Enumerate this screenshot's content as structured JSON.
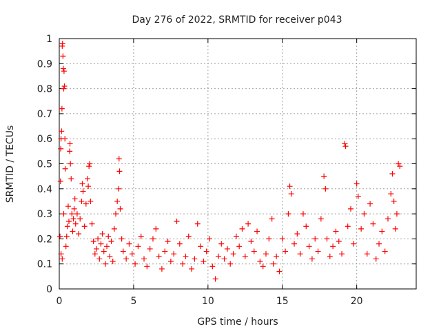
{
  "chart_data": {
    "type": "scatter",
    "title": "Day 276 of 2022, SRMTID for receiver p043",
    "xlabel": "GPS time / hours",
    "ylabel": "SRMTID / TECUs",
    "xlim": [
      0,
      24
    ],
    "ylim": [
      0,
      1
    ],
    "xticks": [
      0,
      5,
      10,
      15,
      20
    ],
    "xtick_labels": [
      "0",
      "5",
      "10",
      "15",
      "20"
    ],
    "yticks": [
      0,
      0.1,
      0.2,
      0.3,
      0.4,
      0.5,
      0.6,
      0.7,
      0.8,
      0.9,
      1
    ],
    "ytick_labels": [
      "0",
      "0.1",
      "0.2",
      "0.3",
      "0.4",
      "0.5",
      "0.6",
      "0.7",
      "0.8",
      "0.9",
      "1"
    ],
    "grid": true,
    "marker": "+",
    "color": "#ff0000",
    "series": [
      {
        "name": "SRMTID",
        "points": [
          [
            0.05,
            0.21
          ],
          [
            0.08,
            0.43
          ],
          [
            0.1,
            0.56
          ],
          [
            0.12,
            0.6
          ],
          [
            0.15,
            0.63
          ],
          [
            0.18,
            0.72
          ],
          [
            0.2,
            0.97
          ],
          [
            0.22,
            0.98
          ],
          [
            0.25,
            0.93
          ],
          [
            0.27,
            0.88
          ],
          [
            0.3,
            0.8
          ],
          [
            0.32,
            0.87
          ],
          [
            0.35,
            0.81
          ],
          [
            0.38,
            0.6
          ],
          [
            0.4,
            0.48
          ],
          [
            0.12,
            0.14
          ],
          [
            0.2,
            0.12
          ],
          [
            0.3,
            0.3
          ],
          [
            0.45,
            0.17
          ],
          [
            0.5,
            0.21
          ],
          [
            0.55,
            0.25
          ],
          [
            0.6,
            0.33
          ],
          [
            0.65,
            0.27
          ],
          [
            0.7,
            0.55
          ],
          [
            0.72,
            0.58
          ],
          [
            0.75,
            0.5
          ],
          [
            0.8,
            0.44
          ],
          [
            0.85,
            0.3
          ],
          [
            0.9,
            0.23
          ],
          [
            0.95,
            0.28
          ],
          [
            1.0,
            0.32
          ],
          [
            1.05,
            0.36
          ],
          [
            1.1,
            0.26
          ],
          [
            1.2,
            0.3
          ],
          [
            1.3,
            0.22
          ],
          [
            1.4,
            0.28
          ],
          [
            1.5,
            0.35
          ],
          [
            1.55,
            0.42
          ],
          [
            1.6,
            0.39
          ],
          [
            1.7,
            0.25
          ],
          [
            1.8,
            0.34
          ],
          [
            1.9,
            0.44
          ],
          [
            1.95,
            0.41
          ],
          [
            2.0,
            0.49
          ],
          [
            2.05,
            0.5
          ],
          [
            2.1,
            0.35
          ],
          [
            2.2,
            0.26
          ],
          [
            2.3,
            0.19
          ],
          [
            2.4,
            0.14
          ],
          [
            2.5,
            0.16
          ],
          [
            2.6,
            0.2
          ],
          [
            2.7,
            0.12
          ],
          [
            2.8,
            0.18
          ],
          [
            2.9,
            0.22
          ],
          [
            3.0,
            0.15
          ],
          [
            3.1,
            0.1
          ],
          [
            3.2,
            0.17
          ],
          [
            3.3,
            0.21
          ],
          [
            3.4,
            0.13
          ],
          [
            3.5,
            0.19
          ],
          [
            3.6,
            0.11
          ],
          [
            3.7,
            0.24
          ],
          [
            3.8,
            0.3
          ],
          [
            3.9,
            0.35
          ],
          [
            4.0,
            0.4
          ],
          [
            4.02,
            0.52
          ],
          [
            4.05,
            0.47
          ],
          [
            4.1,
            0.32
          ],
          [
            4.2,
            0.2
          ],
          [
            4.3,
            0.15
          ],
          [
            4.5,
            0.12
          ],
          [
            4.7,
            0.18
          ],
          [
            4.9,
            0.14
          ],
          [
            5.1,
            0.1
          ],
          [
            5.3,
            0.17
          ],
          [
            5.5,
            0.21
          ],
          [
            5.7,
            0.12
          ],
          [
            5.9,
            0.09
          ],
          [
            6.1,
            0.16
          ],
          [
            6.3,
            0.2
          ],
          [
            6.5,
            0.24
          ],
          [
            6.7,
            0.13
          ],
          [
            6.9,
            0.08
          ],
          [
            7.1,
            0.15
          ],
          [
            7.3,
            0.19
          ],
          [
            7.5,
            0.11
          ],
          [
            7.7,
            0.14
          ],
          [
            7.9,
            0.27
          ],
          [
            8.1,
            0.18
          ],
          [
            8.3,
            0.1
          ],
          [
            8.5,
            0.13
          ],
          [
            8.7,
            0.21
          ],
          [
            8.9,
            0.08
          ],
          [
            9.1,
            0.12
          ],
          [
            9.3,
            0.26
          ],
          [
            9.5,
            0.17
          ],
          [
            9.7,
            0.11
          ],
          [
            9.9,
            0.15
          ],
          [
            10.1,
            0.2
          ],
          [
            10.3,
            0.09
          ],
          [
            10.5,
            0.04
          ],
          [
            10.7,
            0.13
          ],
          [
            10.9,
            0.18
          ],
          [
            11.1,
            0.12
          ],
          [
            11.3,
            0.16
          ],
          [
            11.5,
            0.1
          ],
          [
            11.7,
            0.14
          ],
          [
            11.9,
            0.21
          ],
          [
            12.1,
            0.17
          ],
          [
            12.3,
            0.24
          ],
          [
            12.5,
            0.13
          ],
          [
            12.7,
            0.26
          ],
          [
            12.9,
            0.19
          ],
          [
            13.1,
            0.15
          ],
          [
            13.3,
            0.23
          ],
          [
            13.5,
            0.11
          ],
          [
            13.7,
            0.09
          ],
          [
            13.9,
            0.14
          ],
          [
            14.1,
            0.2
          ],
          [
            14.3,
            0.28
          ],
          [
            14.4,
            0.1
          ],
          [
            14.6,
            0.13
          ],
          [
            14.8,
            0.07
          ],
          [
            15.0,
            0.2
          ],
          [
            15.2,
            0.15
          ],
          [
            15.4,
            0.3
          ],
          [
            15.5,
            0.41
          ],
          [
            15.6,
            0.38
          ],
          [
            15.8,
            0.18
          ],
          [
            16.0,
            0.22
          ],
          [
            16.2,
            0.14
          ],
          [
            16.4,
            0.3
          ],
          [
            16.6,
            0.25
          ],
          [
            16.8,
            0.17
          ],
          [
            17.0,
            0.12
          ],
          [
            17.2,
            0.2
          ],
          [
            17.4,
            0.15
          ],
          [
            17.6,
            0.28
          ],
          [
            17.8,
            0.45
          ],
          [
            17.9,
            0.4
          ],
          [
            18.0,
            0.2
          ],
          [
            18.2,
            0.13
          ],
          [
            18.4,
            0.17
          ],
          [
            18.6,
            0.23
          ],
          [
            18.8,
            0.19
          ],
          [
            19.0,
            0.14
          ],
          [
            19.2,
            0.58
          ],
          [
            19.25,
            0.57
          ],
          [
            19.4,
            0.25
          ],
          [
            19.6,
            0.32
          ],
          [
            19.8,
            0.18
          ],
          [
            20.0,
            0.42
          ],
          [
            20.1,
            0.37
          ],
          [
            20.3,
            0.24
          ],
          [
            20.5,
            0.3
          ],
          [
            20.7,
            0.14
          ],
          [
            20.9,
            0.34
          ],
          [
            21.1,
            0.26
          ],
          [
            21.3,
            0.12
          ],
          [
            21.5,
            0.18
          ],
          [
            21.7,
            0.23
          ],
          [
            21.9,
            0.15
          ],
          [
            22.1,
            0.28
          ],
          [
            22.3,
            0.38
          ],
          [
            22.4,
            0.46
          ],
          [
            22.5,
            0.35
          ],
          [
            22.6,
            0.24
          ],
          [
            22.7,
            0.3
          ],
          [
            22.8,
            0.5
          ],
          [
            22.9,
            0.49
          ]
        ]
      }
    ]
  }
}
